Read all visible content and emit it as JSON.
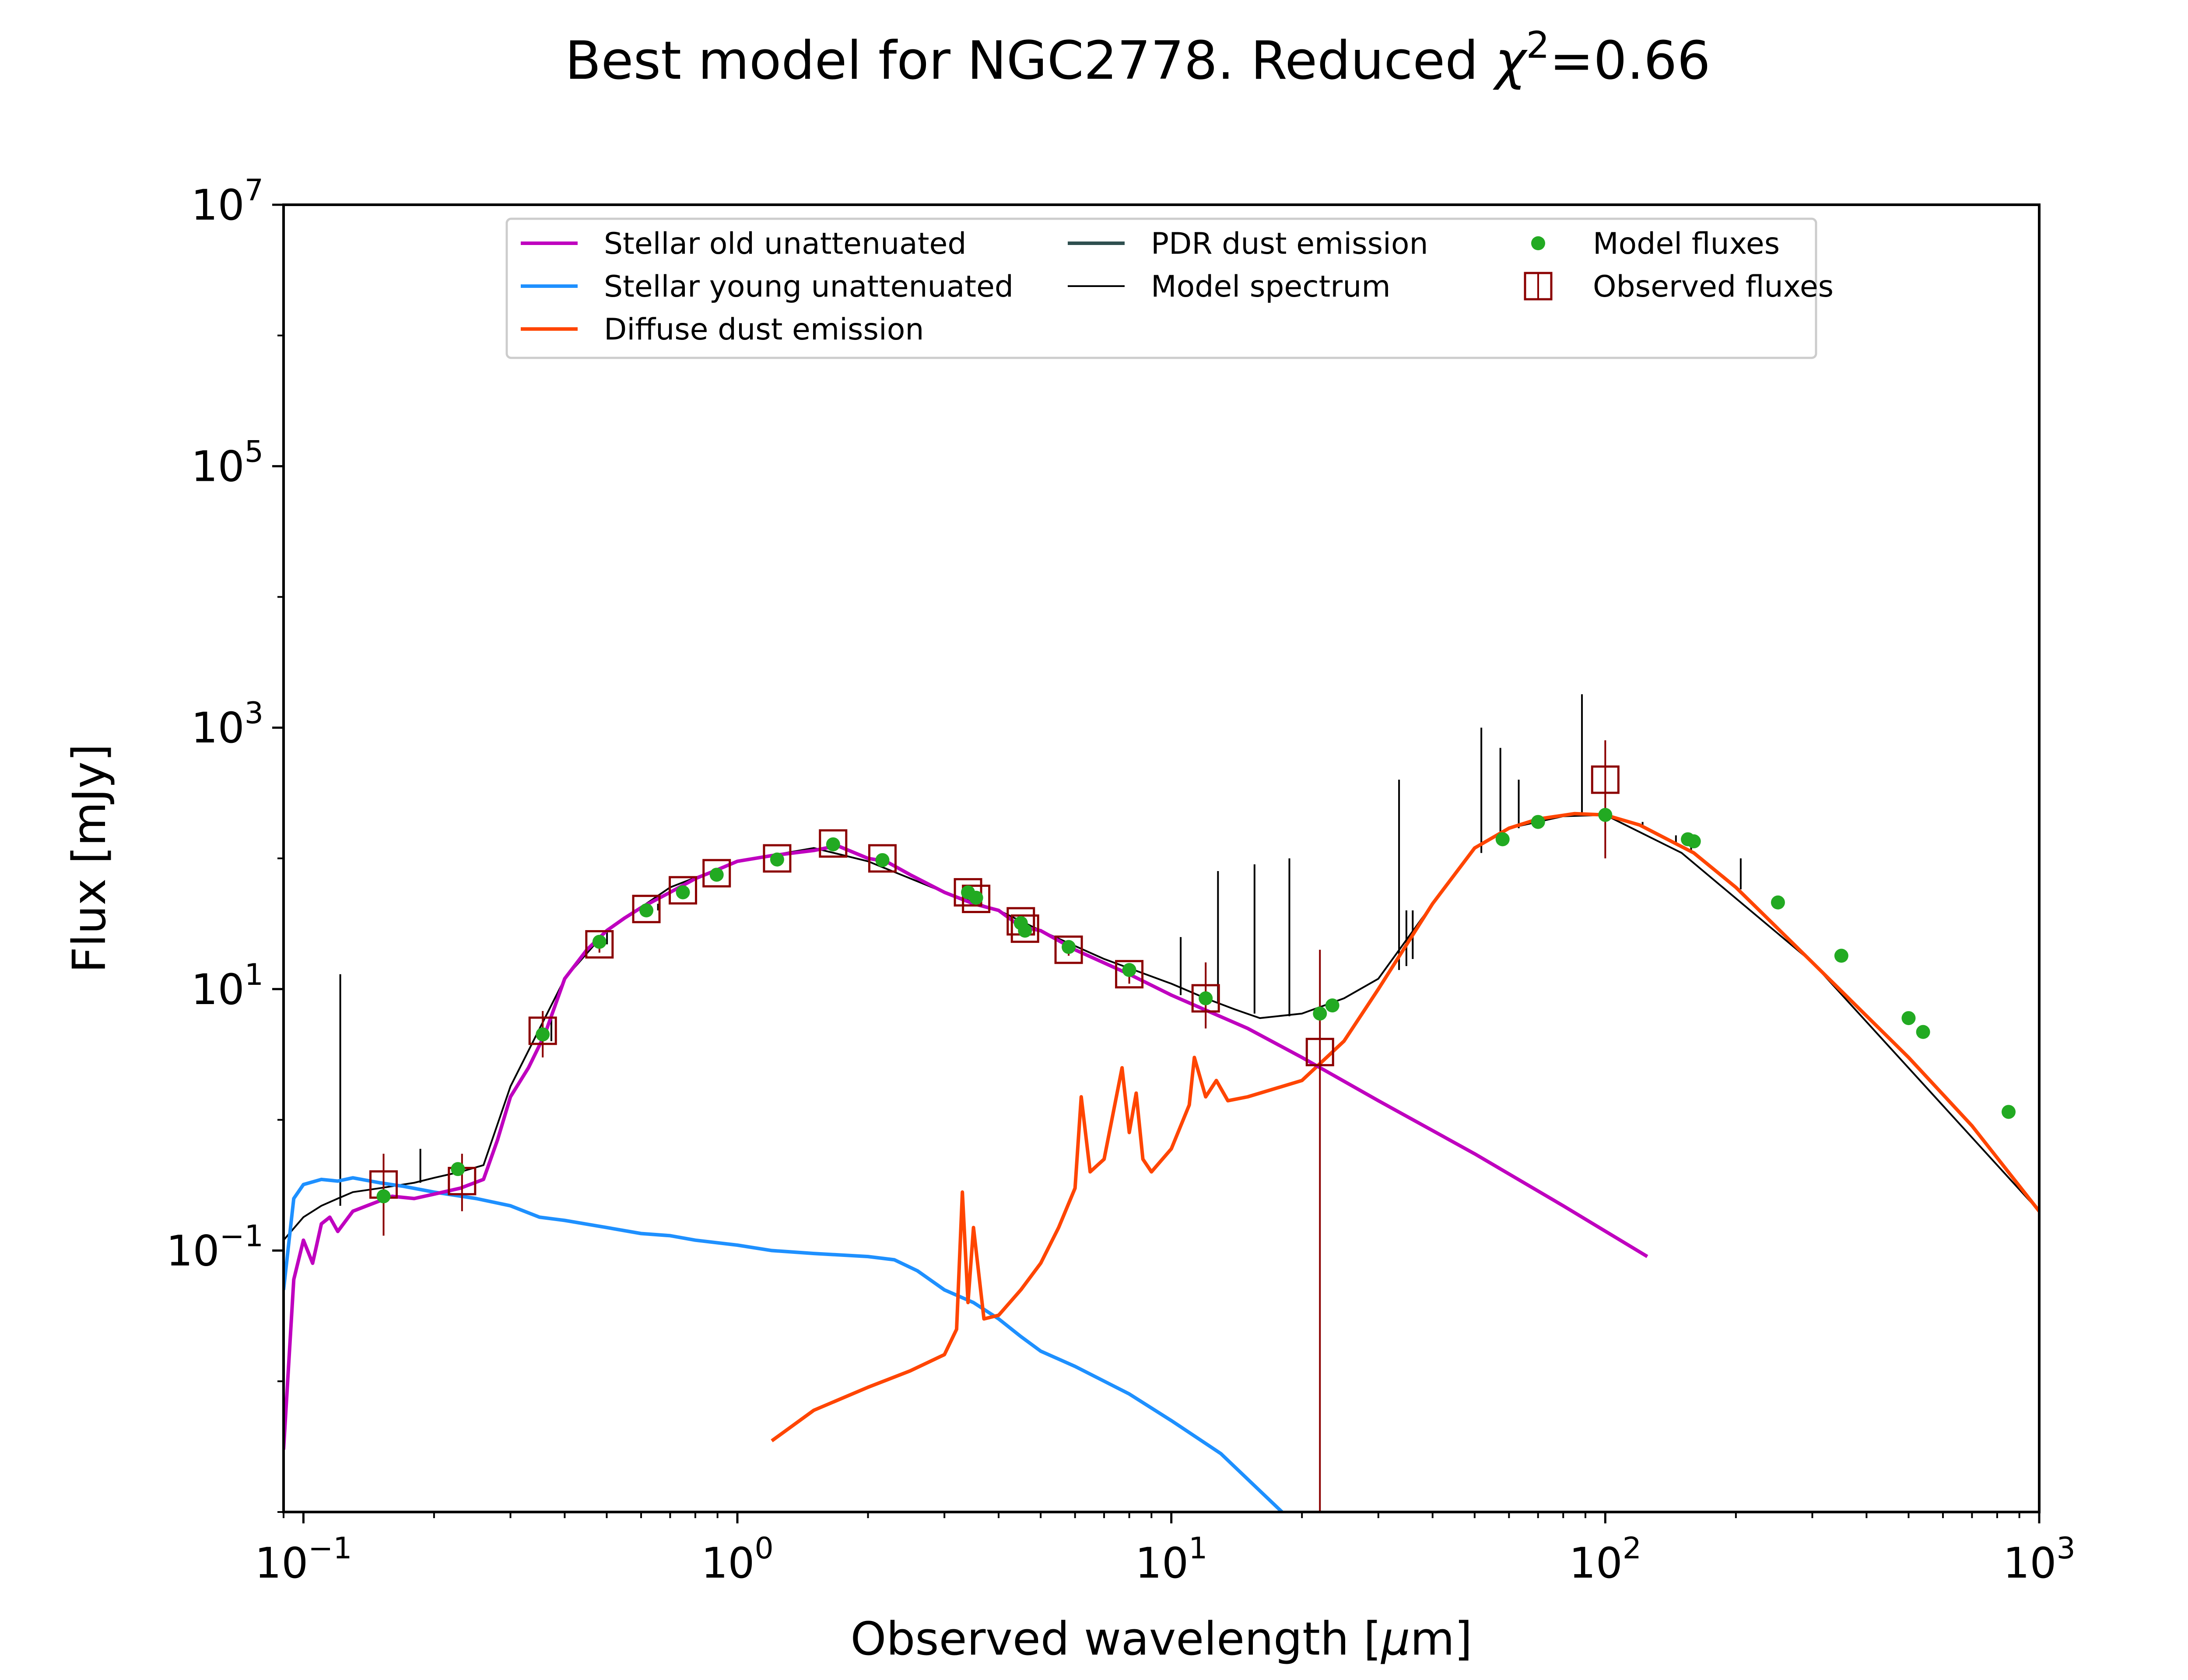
{
  "chart_data": {
    "type": "line",
    "title_prefix": "Best model for NGC2778. Reduced ",
    "title_chi": "χ",
    "title_exp": "2",
    "title_suffix": "=0.66",
    "xlabel_prefix": "Observed wavelength [",
    "xlabel_unit": "μ",
    "xlabel_suffix": "m]",
    "ylabel": "Flux [mJy]",
    "xscale": "log",
    "yscale": "log",
    "xlim": [
      0.09,
      1000
    ],
    "ylim": [
      0.001,
      10000000
    ],
    "grid": false,
    "legend_position": "top-center",
    "x_ticks": [
      {
        "value": 0.1,
        "base": "10",
        "exp": "−1"
      },
      {
        "value": 1,
        "base": "10",
        "exp": "0"
      },
      {
        "value": 10,
        "base": "10",
        "exp": "1"
      },
      {
        "value": 100,
        "base": "10",
        "exp": "2"
      },
      {
        "value": 1000,
        "base": "10",
        "exp": "3"
      }
    ],
    "y_ticks": [
      {
        "value": 0.1,
        "base": "10",
        "exp": "−1"
      },
      {
        "value": 10,
        "base": "10",
        "exp": "1"
      },
      {
        "value": 1000,
        "base": "10",
        "exp": "3"
      },
      {
        "value": 100000,
        "base": "10",
        "exp": "5"
      },
      {
        "value": 10000000,
        "base": "10",
        "exp": "7"
      }
    ],
    "series": [
      {
        "name": "Stellar old unattenuated",
        "color": "#bf00bf",
        "kind": "line",
        "x": [
          0.09,
          0.095,
          0.1,
          0.105,
          0.11,
          0.115,
          0.12,
          0.13,
          0.14,
          0.15,
          0.16,
          0.18,
          0.2,
          0.23,
          0.26,
          0.28,
          0.3,
          0.33,
          0.36,
          0.4,
          0.45,
          0.5,
          0.55,
          0.6,
          0.7,
          0.8,
          0.9,
          1.0,
          1.2,
          1.5,
          1.7,
          2.0,
          2.2,
          2.5,
          3.0,
          3.5,
          4.0,
          4.5,
          5.0,
          6.0,
          8.0,
          10.0,
          15.0,
          20.0,
          30.0,
          50.0,
          80.0,
          125.0
        ],
        "y": [
          0.003,
          0.06,
          0.12,
          0.08,
          0.16,
          0.18,
          0.14,
          0.2,
          0.22,
          0.24,
          0.26,
          0.25,
          0.27,
          0.3,
          0.35,
          0.7,
          1.5,
          2.5,
          4.5,
          12,
          20,
          28,
          35,
          42,
          55,
          70,
          82,
          95,
          105,
          115,
          125,
          100,
          95,
          75,
          55,
          45,
          40,
          30,
          28,
          20,
          13,
          9,
          5.0,
          3.0,
          1.4,
          0.55,
          0.22,
          0.09
        ]
      },
      {
        "name": "Stellar young unattenuated",
        "color": "#1e90ff",
        "kind": "line",
        "x": [
          0.09,
          0.095,
          0.1,
          0.11,
          0.12,
          0.13,
          0.15,
          0.17,
          0.2,
          0.25,
          0.3,
          0.35,
          0.4,
          0.5,
          0.6,
          0.7,
          0.8,
          1.0,
          1.2,
          1.5,
          2.0,
          2.3,
          2.6,
          3.0,
          3.5,
          4.0,
          4.5,
          5.0,
          6.0,
          8.0,
          10.0,
          13.0,
          18.0
        ],
        "y": [
          0.05,
          0.25,
          0.32,
          0.35,
          0.34,
          0.36,
          0.33,
          0.31,
          0.28,
          0.25,
          0.22,
          0.18,
          0.17,
          0.15,
          0.135,
          0.13,
          0.12,
          0.11,
          0.1,
          0.095,
          0.09,
          0.085,
          0.07,
          0.05,
          0.04,
          0.03,
          0.022,
          0.017,
          0.013,
          0.008,
          0.005,
          0.0028,
          0.001
        ]
      },
      {
        "name": "Diffuse dust emission",
        "color": "#ff4500",
        "kind": "line",
        "x": [
          1.2,
          1.5,
          2.0,
          2.5,
          3.0,
          3.2,
          3.3,
          3.4,
          3.5,
          3.7,
          4.0,
          4.5,
          5.0,
          5.5,
          6.0,
          6.2,
          6.5,
          7.0,
          7.7,
          8.0,
          8.3,
          8.6,
          9.0,
          10.0,
          11.0,
          11.3,
          12.0,
          12.7,
          13.5,
          15.0,
          20.0,
          25.0,
          30.0,
          40.0,
          50.0,
          60.0,
          70.0,
          85.0,
          100.0,
          120.0,
          160.0,
          200.0,
          300.0,
          500.0,
          700.0,
          1000.0
        ],
        "y": [
          0.0035,
          0.006,
          0.009,
          0.012,
          0.016,
          0.025,
          0.28,
          0.04,
          0.15,
          0.03,
          0.032,
          0.05,
          0.08,
          0.15,
          0.3,
          1.5,
          0.4,
          0.5,
          2.5,
          0.8,
          1.6,
          0.5,
          0.4,
          0.6,
          1.3,
          3.0,
          1.5,
          2.0,
          1.4,
          1.5,
          2.0,
          4.0,
          10,
          45,
          120,
          170,
          200,
          220,
          215,
          180,
          110,
          60,
          16,
          3.0,
          0.9,
          0.2
        ]
      },
      {
        "name": "PDR dust emission",
        "color": "#2f4f4f",
        "kind": "line",
        "x": [],
        "y": []
      },
      {
        "name": "Model spectrum",
        "color": "#000000",
        "kind": "line",
        "x": [
          0.09,
          0.1,
          0.11,
          0.12,
          0.13,
          0.15,
          0.18,
          0.2,
          0.23,
          0.26,
          0.3,
          0.4,
          0.5,
          0.7,
          1.0,
          1.5,
          2.0,
          3.0,
          4.0,
          5.0,
          7.0,
          10.0,
          12.0,
          14.0,
          16.0,
          20.0,
          25.0,
          30.0,
          40.0,
          50.0,
          60.0,
          80.0,
          100.0,
          150.0,
          300.0,
          1000.0
        ],
        "y": [
          0.12,
          0.18,
          0.22,
          0.25,
          0.28,
          0.3,
          0.33,
          0.36,
          0.4,
          0.45,
          1.8,
          12,
          28,
          60,
          95,
          120,
          95,
          55,
          40,
          28,
          17,
          11,
          8.5,
          7.0,
          6.0,
          6.5,
          8.5,
          12,
          45,
          120,
          170,
          210,
          215,
          110,
          16,
          0.2
        ]
      },
      {
        "name": "Model fluxes",
        "color": "#22aa22",
        "kind": "points",
        "x": [
          0.153,
          0.227,
          0.356,
          0.481,
          0.617,
          0.749,
          0.896,
          1.235,
          1.662,
          2.159,
          3.4,
          3.55,
          4.5,
          4.6,
          5.8,
          8.0,
          12.0,
          22.0,
          23.5,
          58,
          70,
          100,
          155,
          160,
          250,
          350,
          500,
          540,
          850
        ],
        "y": [
          0.26,
          0.42,
          4.5,
          23,
          40,
          55,
          75,
          98,
          128,
          97,
          55,
          50,
          32,
          28,
          21,
          14,
          8.5,
          6.5,
          7.5,
          140,
          190,
          215,
          140,
          135,
          46,
          18,
          6,
          4.7,
          1.15
        ]
      },
      {
        "name": "Observed fluxes",
        "color": "#8b0000",
        "kind": "errorbars",
        "x": [
          0.153,
          0.232,
          0.356,
          0.481,
          0.617,
          0.749,
          0.896,
          1.235,
          1.662,
          2.159,
          3.4,
          3.55,
          4.5,
          4.6,
          5.8,
          8.0,
          12.0,
          22.0,
          100
        ],
        "y": [
          0.32,
          0.34,
          4.8,
          22,
          41,
          57,
          77,
          100,
          130,
          100,
          55,
          49,
          33,
          29,
          20,
          13,
          8.5,
          3.3,
          400
        ],
        "yerr_low": [
          0.13,
          0.2,
          3.0,
          19,
          36,
          52,
          72,
          93,
          123,
          91,
          50,
          44,
          30,
          26,
          18,
          11,
          5.0,
          0.001,
          100
        ],
        "yerr_high": [
          0.55,
          0.55,
          6.8,
          25,
          45,
          62,
          82,
          107,
          137,
          109,
          60,
          54,
          36,
          32,
          22,
          15,
          16,
          20,
          800
        ]
      }
    ],
    "emission_lines": {
      "color": "#000000",
      "x": [
        0.1216,
        0.186,
        0.3727,
        0.5007,
        0.6563,
        12.81,
        15.55,
        18.71,
        10.51,
        33.48,
        34.81,
        36.0,
        51.81,
        57.32,
        63.18,
        88.36,
        121.9,
        145.5,
        157.7,
        205.2
      ],
      "y_top": [
        13.0,
        0.6,
        6.0,
        28,
        45,
        80,
        90,
        100,
        25,
        400,
        40,
        40,
        1000,
        700,
        400,
        1800,
        190,
        150,
        140,
        100
      ],
      "y_base": [
        0.22,
        0.33,
        4.0,
        22,
        40,
        8.0,
        6.5,
        6.2,
        9.0,
        14,
        15,
        17,
        110,
        150,
        170,
        210,
        180,
        130,
        115,
        58
      ]
    }
  }
}
